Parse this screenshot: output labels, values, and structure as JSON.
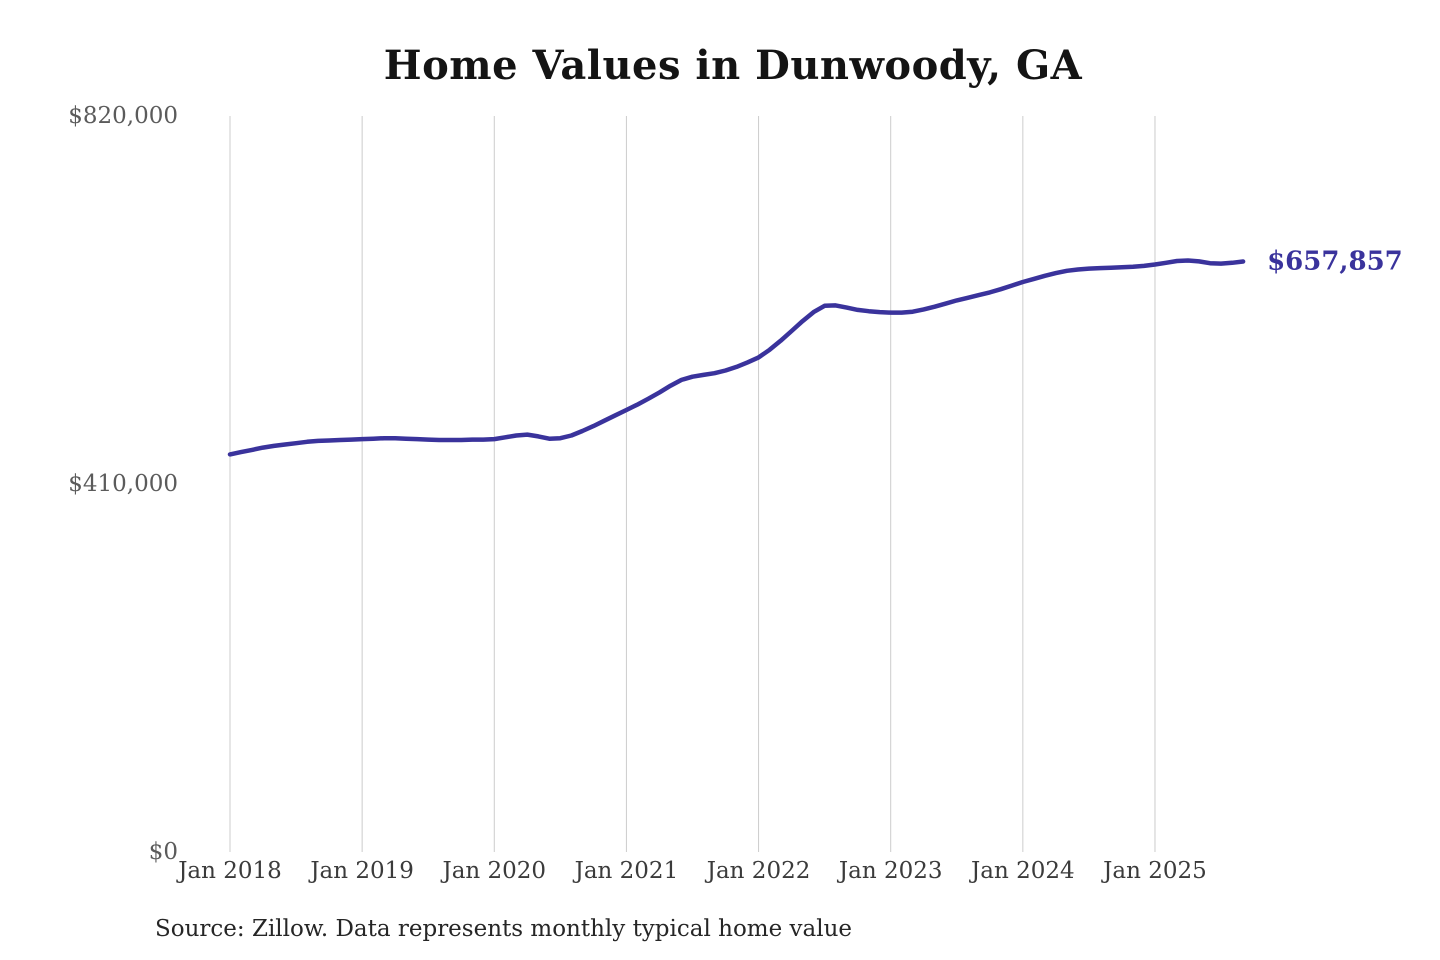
{
  "title": "Home Values in Dunwoody, GA",
  "source_note": "Source: Zillow. Data represents monthly typical home value",
  "colors": {
    "line": "#3a339c",
    "grid": "#cccccc",
    "title_text": "#141414",
    "y_tick_text": "#5b5b5b",
    "x_tick_text": "#3b3b3b",
    "source_text": "#262626",
    "background": "#ffffff"
  },
  "chart_data": {
    "type": "line",
    "title": "Home Values in Dunwoody, GA",
    "series_name": "Monthly typical home value",
    "unit": "USD",
    "legend": "none",
    "grid": "vertical-only",
    "ylim": [
      0,
      820000
    ],
    "y_ticks": [
      {
        "label": "$820,000",
        "value": 820000
      },
      {
        "label": "$410,000",
        "value": 410000
      },
      {
        "label": "$0",
        "value": 0
      }
    ],
    "x_tick_labels": [
      "Jan 2018",
      "Jan 2019",
      "Jan 2020",
      "Jan 2021",
      "Jan 2022",
      "Jan 2023",
      "Jan 2024",
      "Jan 2025"
    ],
    "end_label": "$657,857",
    "end_value": 657857,
    "months": [
      "2018-01",
      "2018-02",
      "2018-03",
      "2018-04",
      "2018-05",
      "2018-06",
      "2018-07",
      "2018-08",
      "2018-09",
      "2018-10",
      "2018-11",
      "2018-12",
      "2019-01",
      "2019-02",
      "2019-03",
      "2019-04",
      "2019-05",
      "2019-06",
      "2019-07",
      "2019-08",
      "2019-09",
      "2019-10",
      "2019-11",
      "2019-12",
      "2020-01",
      "2020-02",
      "2020-03",
      "2020-04",
      "2020-05",
      "2020-06",
      "2020-07",
      "2020-08",
      "2020-09",
      "2020-10",
      "2020-11",
      "2020-12",
      "2021-01",
      "2021-02",
      "2021-03",
      "2021-04",
      "2021-05",
      "2021-06",
      "2021-07",
      "2021-08",
      "2021-09",
      "2021-10",
      "2021-11",
      "2021-12",
      "2022-01",
      "2022-02",
      "2022-03",
      "2022-04",
      "2022-05",
      "2022-06",
      "2022-07",
      "2022-08",
      "2022-09",
      "2022-10",
      "2022-11",
      "2022-12",
      "2023-01",
      "2023-02",
      "2023-03",
      "2023-04",
      "2023-05",
      "2023-06",
      "2023-07",
      "2023-08",
      "2023-09",
      "2023-10",
      "2023-11",
      "2023-12",
      "2024-01",
      "2024-02",
      "2024-03",
      "2024-04",
      "2024-05",
      "2024-06",
      "2024-07",
      "2024-08",
      "2024-09",
      "2024-10",
      "2024-11",
      "2024-12",
      "2025-01",
      "2025-02",
      "2025-03",
      "2025-04",
      "2025-05",
      "2025-06",
      "2025-07",
      "2025-08",
      "2025-09"
    ],
    "values": [
      443000,
      445500,
      448000,
      450500,
      452500,
      454000,
      455500,
      457000,
      458000,
      458500,
      459000,
      459500,
      460000,
      460500,
      461000,
      461000,
      460500,
      460000,
      459500,
      459000,
      459000,
      459000,
      459500,
      459500,
      460000,
      462000,
      464000,
      465000,
      463000,
      460500,
      461000,
      464000,
      469000,
      474500,
      480500,
      486500,
      492500,
      498500,
      505000,
      512000,
      519500,
      526000,
      529500,
      531500,
      533500,
      536500,
      540500,
      545500,
      551000,
      559500,
      569500,
      580500,
      591500,
      601500,
      608500,
      609000,
      606500,
      604000,
      602500,
      601500,
      601000,
      601000,
      602000,
      604500,
      607500,
      611000,
      614500,
      617500,
      620500,
      623500,
      627000,
      631000,
      635000,
      638500,
      642000,
      645000,
      647500,
      649000,
      650000,
      650500,
      651000,
      651500,
      652000,
      653000,
      654500,
      656500,
      658500,
      659000,
      658000,
      656000,
      655500,
      656500,
      657857
    ]
  }
}
